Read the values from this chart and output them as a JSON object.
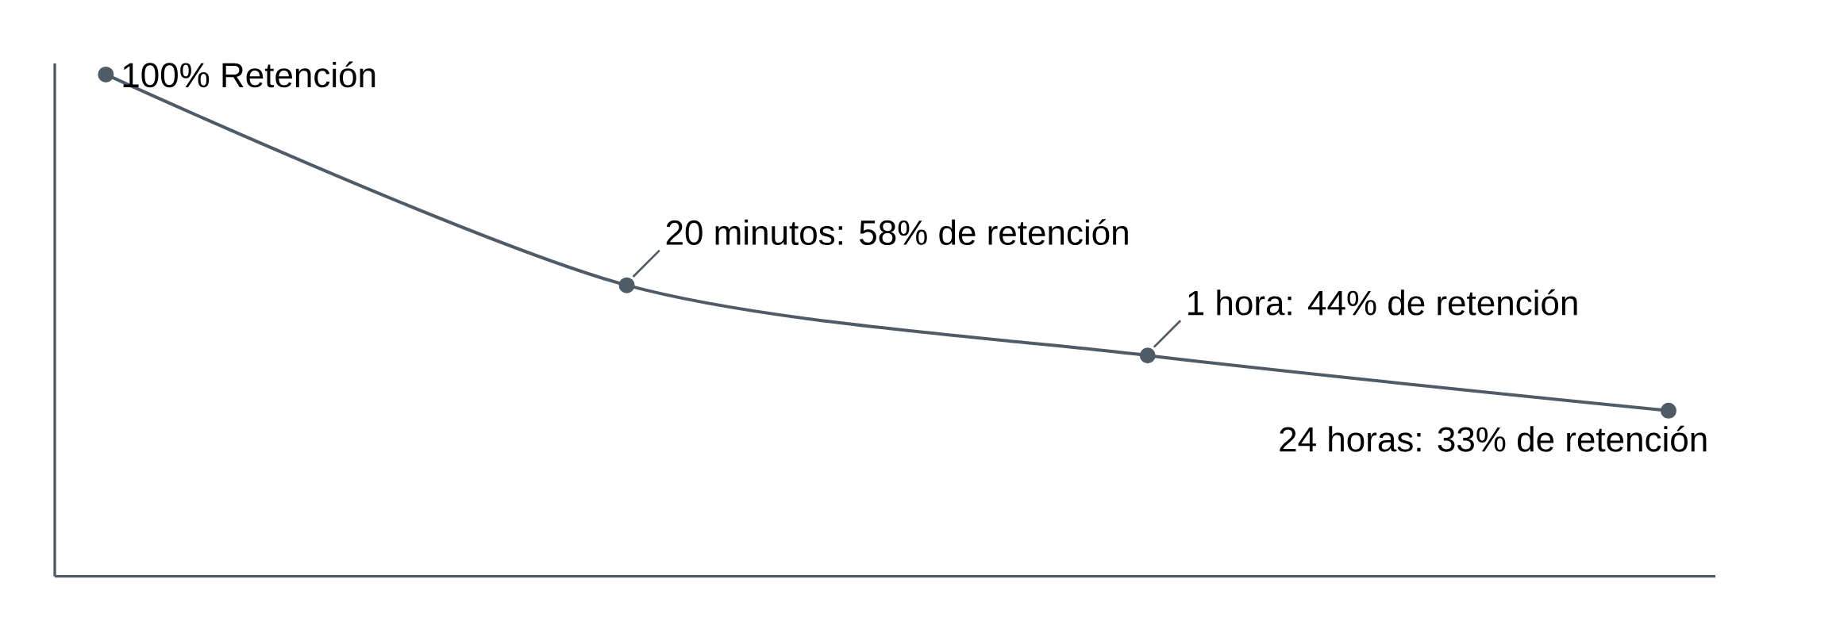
{
  "chart_data": {
    "type": "line",
    "categories": [
      null,
      null,
      null,
      null
    ],
    "series": [
      {
        "color": "#4f5b66",
        "values": [
          100,
          58,
          44,
          33
        ],
        "value_labels": [
          "100% Retención",
          "20 minutos: 58% de retención",
          "1 hora: 44% de retención",
          "24 horas: 33% de retención"
        ]
      }
    ],
    "marker": "circle"
  }
}
